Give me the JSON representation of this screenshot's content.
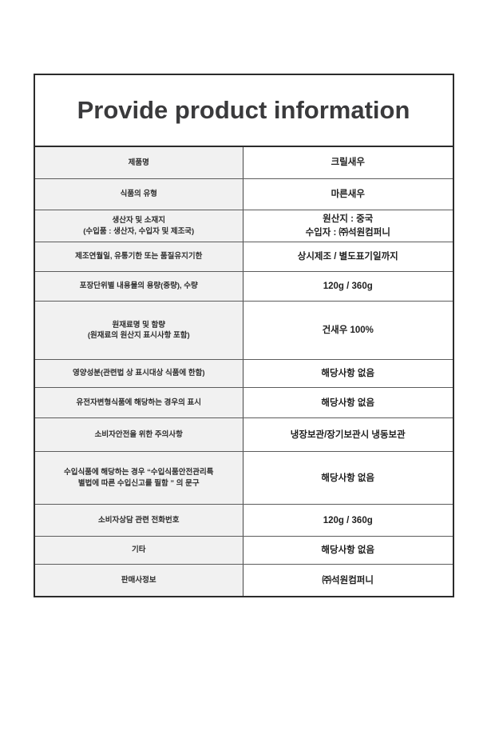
{
  "page": {
    "title": "Provide product information"
  },
  "colors": {
    "label_cell_background": "#f1f1f1",
    "border": "#2b2b2b",
    "text": "#3a3a3c"
  },
  "table": {
    "rows": [
      {
        "label": "제품명",
        "value": "크릴새우"
      },
      {
        "label": "식품의 유형",
        "value": "마른새우"
      },
      {
        "label": "생산자 및 소재지\n(수입품 : 생산자, 수입자 및 제조국)",
        "value": "원산지 : 중국\n수입자 : ㈜석원컴퍼니"
      },
      {
        "label": "제조연월일, 유통기한 또는 품질유지기한",
        "value": "상시제조 / 별도표기일까지"
      },
      {
        "label": "포장단위별 내용물의 용량(중량), 수량",
        "value": "120g / 360g"
      },
      {
        "label": "원재료명 및 함량\n(원재료의 원산지 표시사항 포함)",
        "value": "건새우 100%"
      },
      {
        "label": "영양성분(관련법 상 표시대상 식품에 한함)",
        "value": "해당사항 없음"
      },
      {
        "label": "유전자변형식품에 해당하는 경우의 표시",
        "value": "해당사항 없음"
      },
      {
        "label": "소비자안전을 위한 주의사항",
        "value": "냉장보관/장기보관시 냉동보관"
      },
      {
        "label": "수입식품에 해당하는 경우 “수입식품안전관리특\n별법에 따른 수입신고를 필함 ” 의 문구",
        "value": "해당사항 없음"
      },
      {
        "label": "소비자상담 관련 전화번호",
        "value": "120g / 360g"
      },
      {
        "label": "기타",
        "value": "해당사항 없음"
      },
      {
        "label": "판매사정보",
        "value": "㈜석원컴퍼니"
      }
    ]
  }
}
